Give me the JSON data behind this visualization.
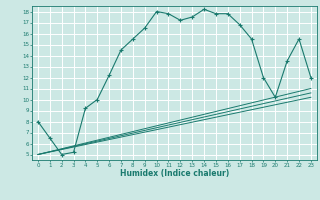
{
  "xlabel": "Humidex (Indice chaleur)",
  "bg_color": "#cce8e4",
  "grid_color": "#ffffff",
  "line_color": "#1a7a6e",
  "xlim": [
    -0.5,
    23.5
  ],
  "ylim": [
    4.5,
    18.5
  ],
  "xticks": [
    0,
    1,
    2,
    3,
    4,
    5,
    6,
    7,
    8,
    9,
    10,
    11,
    12,
    13,
    14,
    15,
    16,
    17,
    18,
    19,
    20,
    21,
    22,
    23
  ],
  "yticks": [
    5,
    6,
    7,
    8,
    9,
    10,
    11,
    12,
    13,
    14,
    15,
    16,
    17,
    18
  ],
  "main_x": [
    0,
    1,
    2,
    3,
    4,
    5,
    6,
    7,
    8,
    9,
    10,
    11,
    12,
    13,
    14,
    15,
    16,
    17,
    18,
    19,
    20,
    21,
    22,
    23
  ],
  "main_y": [
    8.0,
    6.5,
    5.0,
    5.2,
    9.2,
    10.0,
    12.2,
    14.5,
    15.5,
    16.5,
    18.0,
    17.8,
    17.2,
    17.5,
    18.2,
    17.8,
    17.8,
    16.8,
    15.5,
    12.0,
    10.2,
    13.5,
    15.5,
    12.0
  ],
  "ref_line1_x": [
    0,
    23
  ],
  "ref_line1_y": [
    5.0,
    10.2
  ],
  "ref_line2_x": [
    0,
    23
  ],
  "ref_line2_y": [
    5.0,
    10.6
  ],
  "ref_line3_x": [
    0,
    23
  ],
  "ref_line3_y": [
    5.0,
    11.0
  ]
}
